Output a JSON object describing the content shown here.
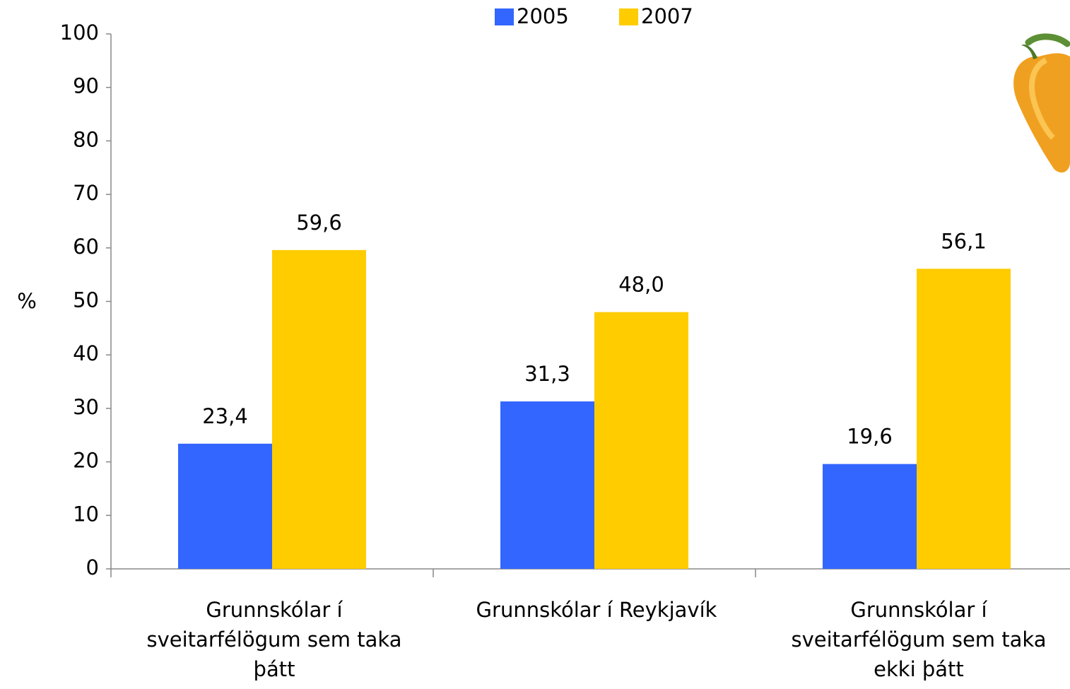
{
  "chart_data": {
    "type": "bar",
    "categories": [
      "Grunnskólar í sveitarfélögum sem taka þátt",
      "Grunnskólar í Reykjavík",
      "Grunnskólar í sveitarfélögum sem taka ekki þátt"
    ],
    "series": [
      {
        "name": "2005",
        "color": "#3366ff",
        "values": [
          23.4,
          31.3,
          19.6
        ],
        "value_labels": [
          "23,4",
          "31,3",
          "19,6"
        ]
      },
      {
        "name": "2007",
        "color": "#ffcc00",
        "values": [
          59.6,
          48.0,
          56.1
        ],
        "value_labels": [
          "59,6",
          "48,0",
          "56,1"
        ]
      }
    ],
    "y_label": "%",
    "ylim": [
      0,
      100
    ],
    "yticks": [
      0,
      10,
      20,
      30,
      40,
      50,
      60,
      70,
      80,
      90,
      100
    ],
    "grid": false,
    "legend": "top"
  }
}
